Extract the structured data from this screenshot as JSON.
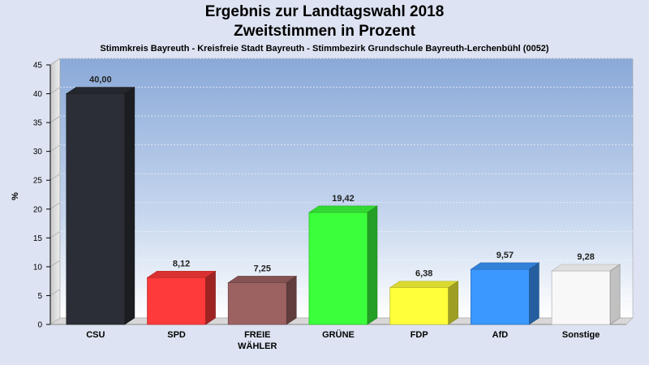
{
  "header": {
    "title_line1": "Ergebnis zur Landtagswahl 2018",
    "title_line2": "Zweitstimmen in Prozent",
    "subtitle": "Stimmkreis Bayreuth - Kreisfreie Stadt Bayreuth - Stimmbezirk Grundschule Bayreuth-Lerchenbühl (0052)"
  },
  "chart_data": {
    "type": "bar",
    "title": "Ergebnis zur Landtagswahl 2018",
    "subtitle": "Zweitstimmen in Prozent",
    "ylabel": "%",
    "xlabel": "",
    "ylim": [
      0,
      45
    ],
    "yticks": [
      0,
      5,
      10,
      15,
      20,
      25,
      30,
      35,
      40,
      45
    ],
    "grid": true,
    "legend": "none",
    "categories": [
      "CSU",
      "SPD",
      "FREIE\nWÄHLER",
      "GRÜNE",
      "FDP",
      "AfD",
      "Sonstige"
    ],
    "values": [
      40.0,
      8.12,
      7.25,
      19.42,
      6.38,
      9.57,
      9.28
    ],
    "value_labels": [
      "40,00",
      "8,12",
      "7,25",
      "19,42",
      "6,38",
      "9,57",
      "9,28"
    ],
    "colors": [
      "#2b2e36",
      "#ff3a3a",
      "#9c6262",
      "#3cff3c",
      "#ffff3a",
      "#3a98ff",
      "#f8f8f8"
    ]
  }
}
